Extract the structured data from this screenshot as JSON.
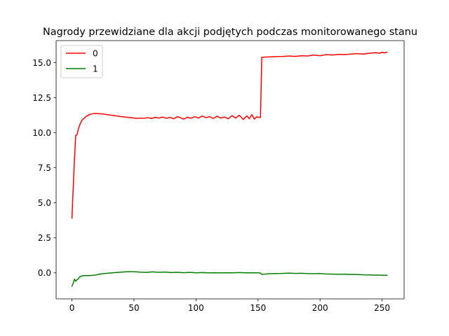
{
  "chart_data": {
    "type": "line",
    "title": "Nagrody przewidziane dla akcji podjętych podczas monitorowanego stanu",
    "xlabel": "",
    "ylabel": "",
    "xlim": [
      -12.75,
      267.75
    ],
    "ylim": [
      -1.86,
      16.58
    ],
    "xticks": [
      0,
      50,
      100,
      150,
      200,
      250
    ],
    "yticks": [
      0.0,
      2.5,
      5.0,
      7.5,
      10.0,
      12.5,
      15.0
    ],
    "ytick_labels": [
      "0.0",
      "2.5",
      "5.0",
      "7.5",
      "10.0",
      "12.5",
      "15.0"
    ],
    "grid": false,
    "legend_position": "upper-left",
    "series": [
      {
        "name": "0",
        "color": "#ff0000",
        "points": [
          [
            0,
            3.9
          ],
          [
            1,
            6.0
          ],
          [
            2,
            8.0
          ],
          [
            3,
            9.8
          ],
          [
            4,
            9.85
          ],
          [
            5,
            10.2
          ],
          [
            6,
            10.5
          ],
          [
            7,
            10.7
          ],
          [
            8,
            10.9
          ],
          [
            10,
            11.05
          ],
          [
            12,
            11.2
          ],
          [
            14,
            11.3
          ],
          [
            16,
            11.35
          ],
          [
            18,
            11.37
          ],
          [
            20,
            11.37
          ],
          [
            24,
            11.35
          ],
          [
            28,
            11.3
          ],
          [
            32,
            11.25
          ],
          [
            36,
            11.2
          ],
          [
            40,
            11.15
          ],
          [
            45,
            11.1
          ],
          [
            50,
            11.05
          ],
          [
            52,
            11.02
          ],
          [
            55,
            11.05
          ],
          [
            58,
            11.03
          ],
          [
            61,
            11.08
          ],
          [
            64,
            11.02
          ],
          [
            67,
            11.1
          ],
          [
            70,
            11.05
          ],
          [
            73,
            11.12
          ],
          [
            76,
            11.03
          ],
          [
            79,
            11.1
          ],
          [
            82,
            11.0
          ],
          [
            85,
            11.15
          ],
          [
            88,
            11.05
          ],
          [
            90,
            10.98
          ],
          [
            93,
            11.1
          ],
          [
            96,
            11.04
          ],
          [
            99,
            11.15
          ],
          [
            102,
            11.05
          ],
          [
            105,
            11.2
          ],
          [
            108,
            11.08
          ],
          [
            111,
            11.15
          ],
          [
            114,
            11.02
          ],
          [
            117,
            11.18
          ],
          [
            120,
            11.05
          ],
          [
            123,
            11.12
          ],
          [
            126,
            11.0
          ],
          [
            129,
            11.22
          ],
          [
            132,
            11.05
          ],
          [
            135,
            11.25
          ],
          [
            138,
            10.95
          ],
          [
            141,
            11.2
          ],
          [
            143,
            11.0
          ],
          [
            145,
            11.3
          ],
          [
            147,
            10.98
          ],
          [
            149,
            11.15
          ],
          [
            150,
            11.1
          ],
          [
            152,
            11.1
          ],
          [
            153,
            15.38
          ],
          [
            155,
            15.4
          ],
          [
            160,
            15.42
          ],
          [
            165,
            15.44
          ],
          [
            170,
            15.45
          ],
          [
            175,
            15.48
          ],
          [
            180,
            15.45
          ],
          [
            185,
            15.5
          ],
          [
            190,
            15.48
          ],
          [
            195,
            15.55
          ],
          [
            200,
            15.5
          ],
          [
            205,
            15.58
          ],
          [
            210,
            15.55
          ],
          [
            215,
            15.6
          ],
          [
            220,
            15.58
          ],
          [
            225,
            15.62
          ],
          [
            230,
            15.65
          ],
          [
            235,
            15.62
          ],
          [
            240,
            15.68
          ],
          [
            245,
            15.72
          ],
          [
            248,
            15.68
          ],
          [
            250,
            15.75
          ],
          [
            252,
            15.7
          ],
          [
            254,
            15.75
          ]
        ]
      },
      {
        "name": "1",
        "color": "#008000",
        "points": [
          [
            0,
            -0.95
          ],
          [
            1,
            -0.75
          ],
          [
            2,
            -0.45
          ],
          [
            3,
            -0.6
          ],
          [
            4,
            -0.5
          ],
          [
            5,
            -0.45
          ],
          [
            6,
            -0.3
          ],
          [
            8,
            -0.22
          ],
          [
            10,
            -0.2
          ],
          [
            14,
            -0.2
          ],
          [
            18,
            -0.17
          ],
          [
            22,
            -0.1
          ],
          [
            26,
            -0.05
          ],
          [
            30,
            -0.02
          ],
          [
            35,
            0.02
          ],
          [
            40,
            0.05
          ],
          [
            45,
            0.08
          ],
          [
            50,
            0.08
          ],
          [
            55,
            0.05
          ],
          [
            60,
            0.03
          ],
          [
            65,
            0.07
          ],
          [
            70,
            0.04
          ],
          [
            75,
            0.06
          ],
          [
            80,
            0.02
          ],
          [
            85,
            0.04
          ],
          [
            90,
            0.01
          ],
          [
            95,
            0.03
          ],
          [
            100,
            0.0
          ],
          [
            105,
            0.02
          ],
          [
            110,
            0.0
          ],
          [
            115,
            0.01
          ],
          [
            120,
            0.0
          ],
          [
            125,
            0.01
          ],
          [
            130,
            0.0
          ],
          [
            135,
            0.02
          ],
          [
            140,
            0.0
          ],
          [
            145,
            0.01
          ],
          [
            150,
            0.0
          ],
          [
            152,
            -0.02
          ],
          [
            153,
            -0.12
          ],
          [
            156,
            -0.08
          ],
          [
            160,
            -0.06
          ],
          [
            165,
            -0.05
          ],
          [
            170,
            -0.04
          ],
          [
            175,
            -0.02
          ],
          [
            180,
            -0.04
          ],
          [
            185,
            -0.03
          ],
          [
            190,
            -0.05
          ],
          [
            195,
            -0.06
          ],
          [
            200,
            -0.05
          ],
          [
            205,
            -0.08
          ],
          [
            210,
            -0.09
          ],
          [
            215,
            -0.1
          ],
          [
            220,
            -0.1
          ],
          [
            225,
            -0.12
          ],
          [
            230,
            -0.12
          ],
          [
            235,
            -0.14
          ],
          [
            240,
            -0.15
          ],
          [
            245,
            -0.16
          ],
          [
            250,
            -0.17
          ],
          [
            254,
            -0.18
          ]
        ]
      }
    ]
  }
}
